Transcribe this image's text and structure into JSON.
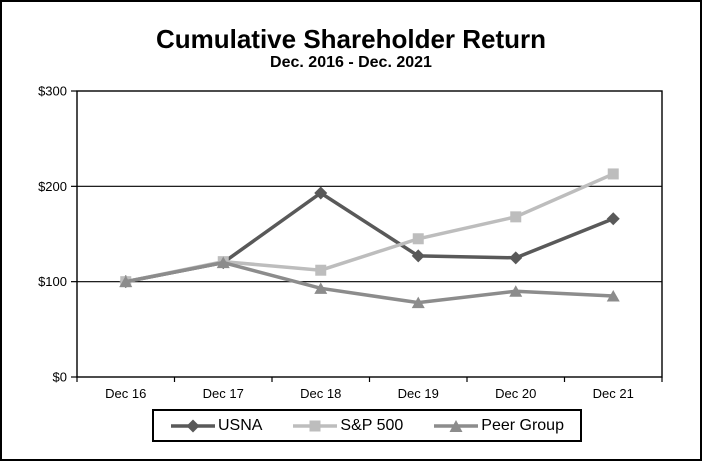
{
  "chart_data": {
    "type": "line",
    "title": "Cumulative Shareholder Return",
    "subtitle": "Dec. 2016 - Dec. 2021",
    "categories": [
      "Dec 16",
      "Dec 17",
      "Dec 18",
      "Dec 19",
      "Dec 20",
      "Dec 21"
    ],
    "xlabel": "",
    "ylabel": "",
    "ylim": [
      0,
      300
    ],
    "y_tick_values": [
      0,
      100,
      200,
      300
    ],
    "y_tick_labels": [
      "$0",
      "$100",
      "$200",
      "$300"
    ],
    "grid": true,
    "legend_position": "bottom",
    "series": [
      {
        "name": "USNA",
        "marker": "diamond",
        "color": "#595959",
        "values": [
          100,
          120,
          193,
          127,
          125,
          166
        ]
      },
      {
        "name": "S&P 500",
        "marker": "square",
        "color": "#bdbdbd",
        "values": [
          100,
          121,
          112,
          145,
          168,
          213
        ]
      },
      {
        "name": "Peer Group",
        "marker": "triangle",
        "color": "#8c8c8c",
        "values": [
          100,
          120,
          93,
          78,
          90,
          85
        ]
      }
    ],
    "axis_color": "#000000",
    "text_color": "#000000",
    "background_color": "#ffffff"
  }
}
